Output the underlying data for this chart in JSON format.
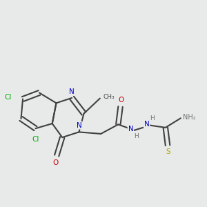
{
  "background_color": "#e8eaea",
  "bond_color": "#404040",
  "colors": {
    "C": "#404040",
    "N": "#0000cc",
    "O": "#cc0000",
    "S": "#aaaa00",
    "Cl": "#00aa00",
    "H": "#707070"
  },
  "figsize": [
    3.0,
    3.0
  ],
  "dpi": 100
}
